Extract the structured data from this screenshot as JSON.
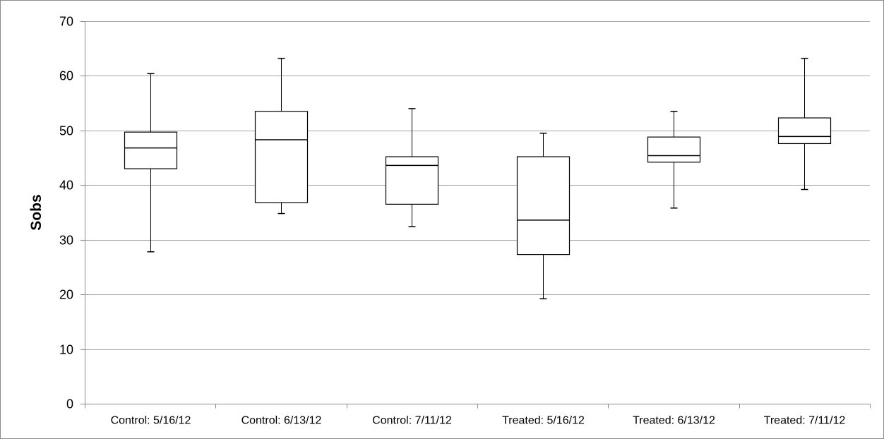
{
  "chart_data": {
    "type": "boxplot",
    "title": "",
    "xlabel": "",
    "ylabel": "Sobs",
    "ylim": [
      0,
      70
    ],
    "yticks": [
      0,
      10,
      20,
      30,
      40,
      50,
      60,
      70
    ],
    "grid": true,
    "legend": "none",
    "colors": {
      "box_fill": "#ffffff",
      "box_stroke": "#000000",
      "grid": "#a6a6a6",
      "axis": "#8c8c8c"
    },
    "categories": [
      "Control: 5/16/12",
      "Control: 6/13/12",
      "Control: 7/11/12",
      "Treated: 5/16/12",
      "Treated: 6/13/12",
      "Treated: 7/11/12"
    ],
    "boxes": [
      {
        "min": 27.8,
        "q1": 43.0,
        "median": 46.8,
        "q3": 49.7,
        "max": 60.4
      },
      {
        "min": 34.8,
        "q1": 36.8,
        "median": 48.3,
        "q3": 53.5,
        "max": 63.2
      },
      {
        "min": 32.4,
        "q1": 36.5,
        "median": 43.6,
        "q3": 45.2,
        "max": 54.0
      },
      {
        "min": 19.2,
        "q1": 27.3,
        "median": 33.6,
        "q3": 45.2,
        "max": 49.5
      },
      {
        "min": 35.8,
        "q1": 44.2,
        "median": 45.4,
        "q3": 48.8,
        "max": 53.5
      },
      {
        "min": 39.2,
        "q1": 47.6,
        "median": 48.9,
        "q3": 52.3,
        "max": 63.2
      }
    ]
  }
}
